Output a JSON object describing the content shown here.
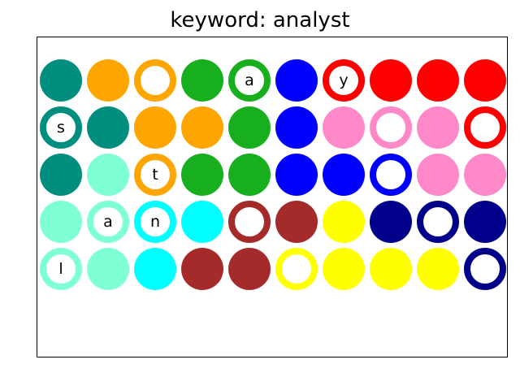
{
  "title": "keyword: analyst",
  "grid": {
    "rows": [
      [
        {
          "color": "#008f7f",
          "style": "filled",
          "letter": ""
        },
        {
          "color": "#ffa500",
          "style": "filled",
          "letter": ""
        },
        {
          "color": "#ffa500",
          "style": "ring",
          "letter": ""
        },
        {
          "color": "#17af1e",
          "style": "filled",
          "letter": ""
        },
        {
          "color": "#17af1e",
          "style": "ring",
          "letter": "a"
        },
        {
          "color": "#0000ff",
          "style": "filled",
          "letter": ""
        },
        {
          "color": "#ff0000",
          "style": "ring",
          "letter": "y"
        },
        {
          "color": "#ff0000",
          "style": "filled",
          "letter": ""
        },
        {
          "color": "#ff0000",
          "style": "filled",
          "letter": ""
        },
        {
          "color": "#ff0000",
          "style": "filled",
          "letter": ""
        }
      ],
      [
        {
          "color": "#008f7f",
          "style": "ring",
          "letter": "s"
        },
        {
          "color": "#008f7f",
          "style": "filled",
          "letter": ""
        },
        {
          "color": "#ffa500",
          "style": "filled",
          "letter": ""
        },
        {
          "color": "#ffa500",
          "style": "filled",
          "letter": ""
        },
        {
          "color": "#17af1e",
          "style": "filled",
          "letter": ""
        },
        {
          "color": "#0000ff",
          "style": "filled",
          "letter": ""
        },
        {
          "color": "#ff88c8",
          "style": "filled",
          "letter": ""
        },
        {
          "color": "#ff88c8",
          "style": "ring",
          "letter": ""
        },
        {
          "color": "#ff88c8",
          "style": "filled",
          "letter": ""
        },
        {
          "color": "#ff0000",
          "style": "ring",
          "letter": ""
        }
      ],
      [
        {
          "color": "#008f7f",
          "style": "filled",
          "letter": ""
        },
        {
          "color": "#7fffd4",
          "style": "filled",
          "letter": ""
        },
        {
          "color": "#ffa500",
          "style": "ring",
          "letter": "t"
        },
        {
          "color": "#17af1e",
          "style": "filled",
          "letter": ""
        },
        {
          "color": "#17af1e",
          "style": "filled",
          "letter": ""
        },
        {
          "color": "#0000ff",
          "style": "filled",
          "letter": ""
        },
        {
          "color": "#0000ff",
          "style": "filled",
          "letter": ""
        },
        {
          "color": "#0000ff",
          "style": "ring",
          "letter": ""
        },
        {
          "color": "#ff88c8",
          "style": "filled",
          "letter": ""
        },
        {
          "color": "#ff88c8",
          "style": "filled",
          "letter": ""
        }
      ],
      [
        {
          "color": "#7fffd4",
          "style": "filled",
          "letter": ""
        },
        {
          "color": "#7fffd4",
          "style": "ring",
          "letter": "a"
        },
        {
          "color": "#00ffff",
          "style": "ring",
          "letter": "n"
        },
        {
          "color": "#00ffff",
          "style": "filled",
          "letter": ""
        },
        {
          "color": "#a52a2a",
          "style": "ring",
          "letter": ""
        },
        {
          "color": "#a52a2a",
          "style": "filled",
          "letter": ""
        },
        {
          "color": "#ffff00",
          "style": "filled",
          "letter": ""
        },
        {
          "color": "#00008b",
          "style": "filled",
          "letter": ""
        },
        {
          "color": "#00008b",
          "style": "ring",
          "letter": ""
        },
        {
          "color": "#00008b",
          "style": "filled",
          "letter": ""
        }
      ],
      [
        {
          "color": "#7fffd4",
          "style": "ring",
          "letter": "l"
        },
        {
          "color": "#7fffd4",
          "style": "filled",
          "letter": ""
        },
        {
          "color": "#00ffff",
          "style": "filled",
          "letter": ""
        },
        {
          "color": "#a52a2a",
          "style": "filled",
          "letter": ""
        },
        {
          "color": "#a52a2a",
          "style": "filled",
          "letter": ""
        },
        {
          "color": "#ffff00",
          "style": "ring",
          "letter": ""
        },
        {
          "color": "#ffff00",
          "style": "filled",
          "letter": ""
        },
        {
          "color": "#ffff00",
          "style": "filled",
          "letter": ""
        },
        {
          "color": "#ffff00",
          "style": "filled",
          "letter": ""
        },
        {
          "color": "#00008b",
          "style": "ring",
          "letter": ""
        }
      ]
    ]
  }
}
